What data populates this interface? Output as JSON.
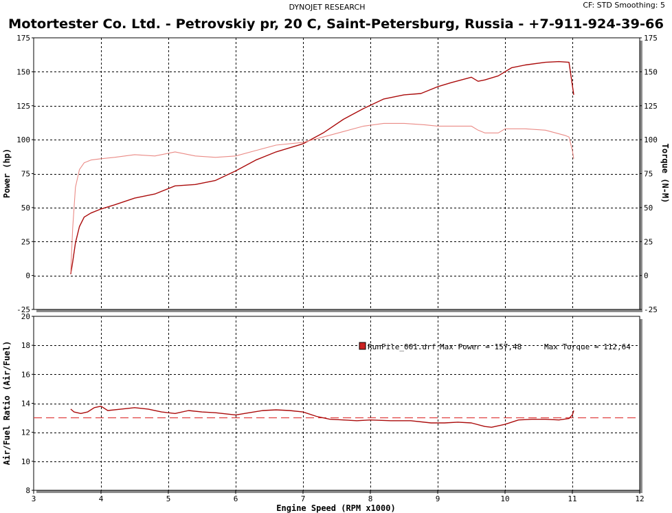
{
  "header": {
    "vendor": "DYNOJET RESEARCH",
    "settings": "CF: STD  Smoothing: 5",
    "title": "Motortester Co. Ltd. - Petrovskiy pr, 20 C, Saint-Petersburg, Russia - +7-911-924-39-66"
  },
  "legend": {
    "run_label": "RunFile_001.drf",
    "max_power": "Max Power = 157,48",
    "max_torque": "Max Torque = 112,64",
    "marker_color": "#cc2222"
  },
  "colors": {
    "power": "#aa0a0a",
    "torque": "#ea8a85",
    "afr": "#aa0a0a",
    "afr_target": "#dd3333",
    "plot_border": "#000000",
    "panel_shadow": "#8c8c8c"
  },
  "chart_data": [
    {
      "type": "line",
      "xlabel": "",
      "ylabel": "Power (hp)",
      "y2label": "Torque (N-M)",
      "xlim": [
        3,
        12
      ],
      "ylim": [
        -25,
        175
      ],
      "y2lim": [
        -25,
        175
      ],
      "xticks": [
        "3",
        "4",
        "5",
        "6",
        "7",
        "8",
        "9",
        "10",
        "11",
        "12"
      ],
      "yticks": [
        "-25",
        "0",
        "25",
        "50",
        "75",
        "100",
        "125",
        "150",
        "175"
      ],
      "y2ticks": [
        "-25",
        "0",
        "25",
        "50",
        "75",
        "100",
        "125",
        "150",
        "175"
      ],
      "grid": true,
      "series": [
        {
          "key": "power",
          "x": [
            3.55,
            3.58,
            3.62,
            3.68,
            3.75,
            3.85,
            4.0,
            4.2,
            4.5,
            4.8,
            5.1,
            5.4,
            5.7,
            6.0,
            6.3,
            6.6,
            7.0,
            7.3,
            7.6,
            7.9,
            8.2,
            8.5,
            8.75,
            9.0,
            9.2,
            9.5,
            9.6,
            9.7,
            9.9,
            10.1,
            10.3,
            10.6,
            10.8,
            10.95,
            11.0,
            11.02
          ],
          "y": [
            1,
            10,
            24,
            36,
            43,
            46,
            49,
            52,
            57,
            60,
            66,
            67,
            70,
            77,
            85,
            91,
            97,
            105,
            115,
            123,
            130,
            133,
            134,
            139,
            142,
            146,
            143,
            144,
            147,
            153,
            155,
            157,
            157.5,
            157,
            140,
            133
          ]
        },
        {
          "key": "torque",
          "x": [
            3.55,
            3.58,
            3.62,
            3.68,
            3.75,
            3.85,
            4.0,
            4.2,
            4.5,
            4.8,
            5.1,
            5.4,
            5.7,
            6.0,
            6.3,
            6.6,
            7.0,
            7.3,
            7.6,
            7.9,
            8.2,
            8.5,
            8.8,
            9.0,
            9.2,
            9.5,
            9.6,
            9.7,
            9.9,
            10.0,
            10.3,
            10.6,
            10.9,
            10.95,
            11.0,
            11.02
          ],
          "y": [
            2,
            35,
            65,
            78,
            83,
            85,
            86,
            87,
            89,
            88,
            91,
            88,
            87,
            88,
            92,
            96,
            98,
            102,
            106,
            110,
            112,
            112,
            111,
            110,
            110,
            110,
            107,
            105,
            105,
            108,
            108,
            107,
            103,
            102,
            92,
            86
          ]
        }
      ]
    },
    {
      "type": "line",
      "xlabel": "Engine Speed (RPM x1000)",
      "ylabel": "Air/Fuel Ratio (Air/Fuel)",
      "xlim": [
        3,
        12
      ],
      "ylim": [
        8,
        20
      ],
      "xticks": [
        "3",
        "4",
        "5",
        "6",
        "7",
        "8",
        "9",
        "10",
        "11",
        "12"
      ],
      "yticks": [
        "8",
        "10",
        "12",
        "14",
        "16",
        "18",
        "20"
      ],
      "grid": true,
      "target_afr": 13.0,
      "series": [
        {
          "key": "afr",
          "x": [
            3.55,
            3.6,
            3.7,
            3.8,
            3.9,
            4.0,
            4.1,
            4.3,
            4.5,
            4.7,
            4.9,
            5.1,
            5.3,
            5.5,
            5.7,
            6.0,
            6.2,
            6.4,
            6.6,
            6.8,
            7.0,
            7.2,
            7.4,
            7.6,
            7.8,
            8.0,
            8.3,
            8.6,
            8.9,
            9.1,
            9.3,
            9.5,
            9.7,
            9.8,
            9.9,
            10.0,
            10.2,
            10.4,
            10.6,
            10.8,
            10.95,
            11.0,
            11.02
          ],
          "y": [
            13.6,
            13.4,
            13.3,
            13.4,
            13.7,
            13.8,
            13.5,
            13.6,
            13.7,
            13.6,
            13.4,
            13.3,
            13.5,
            13.4,
            13.35,
            13.2,
            13.35,
            13.5,
            13.55,
            13.5,
            13.4,
            13.1,
            12.9,
            12.85,
            12.8,
            12.85,
            12.8,
            12.8,
            12.65,
            12.65,
            12.7,
            12.65,
            12.4,
            12.35,
            12.45,
            12.55,
            12.85,
            12.9,
            12.9,
            12.85,
            12.95,
            13.2,
            13.5
          ]
        }
      ]
    }
  ]
}
